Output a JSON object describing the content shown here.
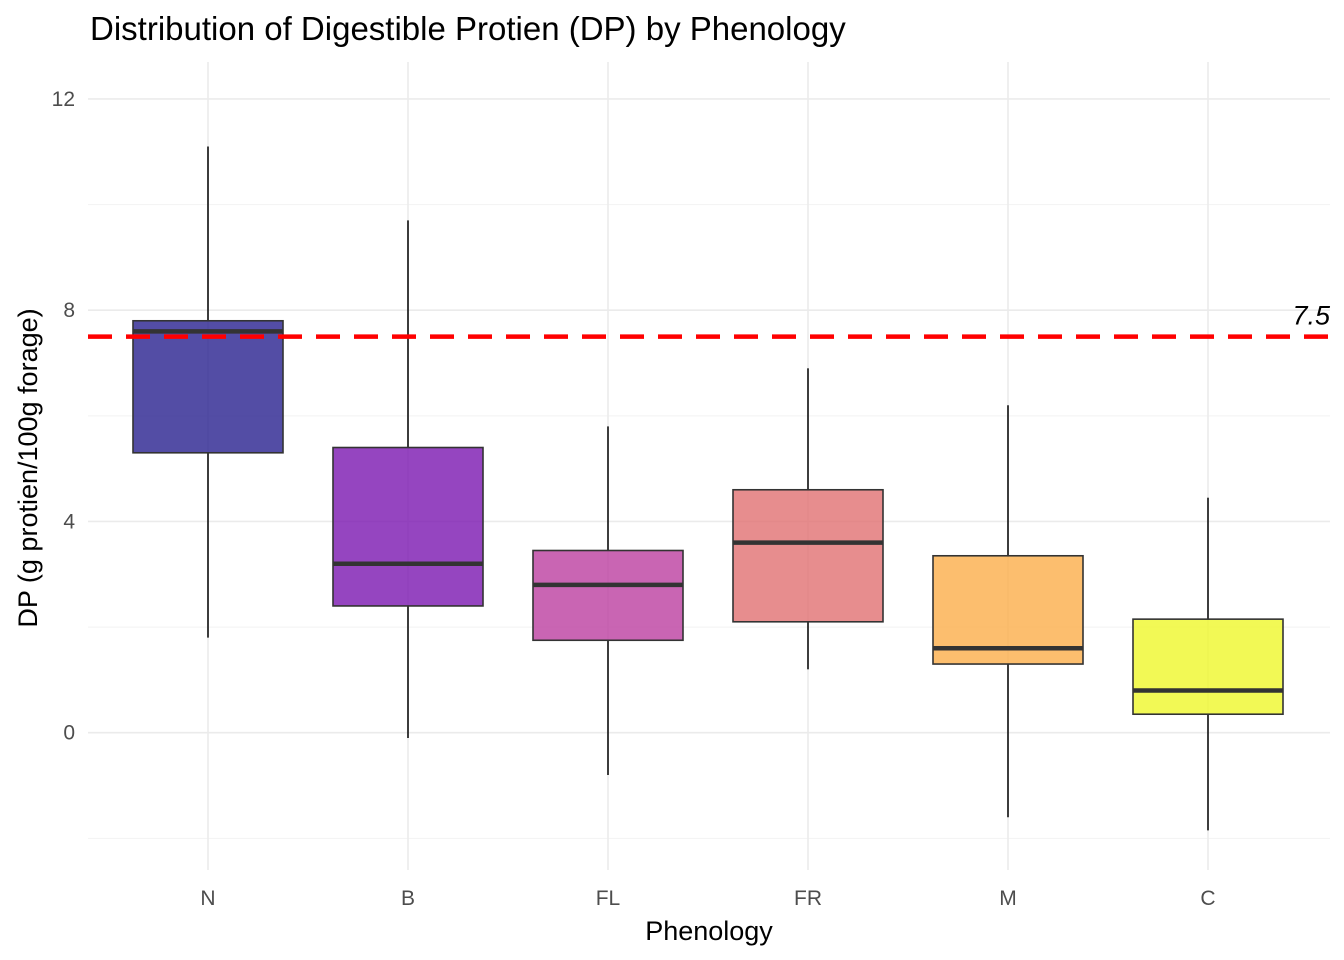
{
  "chart_data": {
    "type": "box",
    "title": "Distribution of Digestible Protien (DP) by Phenology",
    "xlabel": "Phenology",
    "ylabel": "DP (g protien/100g forage)",
    "categories": [
      "N",
      "B",
      "FL",
      "FR",
      "M",
      "C"
    ],
    "ylim": [
      -2.6,
      12.7
    ],
    "yticks": [
      0,
      4,
      8,
      12
    ],
    "grid": true,
    "legend": "none",
    "boxes": [
      {
        "category": "N",
        "whisker_low": 1.8,
        "q1": 5.3,
        "median": 7.6,
        "q3": 7.8,
        "whisker_high": 11.1,
        "color": "#28218F"
      },
      {
        "category": "B",
        "whisker_low": -0.1,
        "q1": 2.4,
        "median": 3.2,
        "q3": 5.4,
        "whisker_high": 9.7,
        "color": "#7B16B0"
      },
      {
        "category": "FL",
        "whisker_low": -0.8,
        "q1": 1.75,
        "median": 2.8,
        "q3": 3.45,
        "whisker_high": 5.8,
        "color": "#BC3FA0"
      },
      {
        "category": "FR",
        "whisker_low": 1.2,
        "q1": 2.1,
        "median": 3.6,
        "q3": 4.6,
        "whisker_high": 6.9,
        "color": "#E17072"
      },
      {
        "category": "M",
        "whisker_low": -1.6,
        "q1": 1.3,
        "median": 1.6,
        "q3": 3.35,
        "whisker_high": 6.2,
        "color": "#FBAE4A"
      },
      {
        "category": "C",
        "whisker_low": -1.85,
        "q1": 0.35,
        "median": 0.8,
        "q3": 2.15,
        "whisker_high": 4.45,
        "color": "#EFF72A"
      }
    ],
    "reference_line": {
      "y": 7.5,
      "label": "7.5",
      "color": "#FF0000",
      "style": "dashed"
    }
  }
}
